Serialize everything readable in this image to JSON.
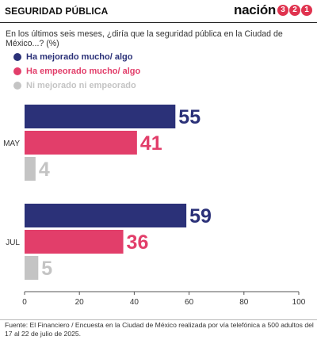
{
  "header": {
    "section_label": "SEGURIDAD PÚBLICA",
    "brand_word": "nación",
    "brand_digits": [
      "3",
      "2",
      "1"
    ]
  },
  "question": "En los últimos seis meses, ¿diría que la seguridad pública en la Ciudad de México...? (%)",
  "source": "Fuente: El Financiero / Encuesta en la Ciudad de México realizada por vía telefónica a 500 adultos del 17 al 22 de julio de 2025.",
  "colors": {
    "improved": "#2b3178",
    "worsened": "#e23e6a",
    "neither": "#c4c4c4",
    "brand_accent": "#e0334f"
  },
  "chart_data": {
    "type": "bar",
    "orientation": "horizontal",
    "categories": [
      "MAY",
      "JUL"
    ],
    "series": [
      {
        "name": "Ha mejorado mucho/ algo",
        "values": [
          55,
          59
        ]
      },
      {
        "name": "Ha empeorado mucho/ algo",
        "values": [
          41,
          36
        ]
      },
      {
        "name": "Ni mejorado ni empeorado",
        "values": [
          4,
          5
        ]
      }
    ],
    "xlim": [
      0,
      100
    ],
    "xticks": [
      0,
      20,
      40,
      60,
      80,
      100
    ],
    "grid": false,
    "legend_position": "top-left",
    "data_labels": true
  }
}
